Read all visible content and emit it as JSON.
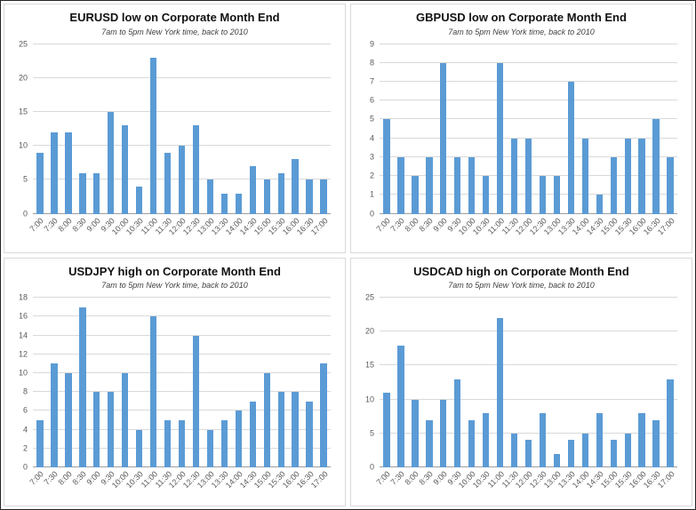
{
  "page": {
    "background": "#ffffff",
    "bar_color": "#5b9bd5",
    "gridline_color": "#d9d9d9",
    "axis_label_color": "#595959"
  },
  "chart_data": [
    {
      "type": "bar",
      "title": "EURUSD low on Corporate Month End",
      "subtitle": "7am to 5pm New York time, back to 2010",
      "categories": [
        "7:00",
        "7:30",
        "8:00",
        "8:30",
        "9:00",
        "9:30",
        "10:00",
        "10:30",
        "11:00",
        "11:30",
        "12:00",
        "12:30",
        "13:00",
        "13:30",
        "14:00",
        "14:30",
        "15:00",
        "15:30",
        "16:00",
        "16:30",
        "17:00"
      ],
      "values": [
        9,
        12,
        12,
        6,
        6,
        15,
        13,
        4,
        23,
        9,
        10,
        13,
        5,
        3,
        3,
        7,
        5,
        6,
        8,
        5,
        5
      ],
      "xlabel": "",
      "ylabel": "",
      "ylim": [
        0,
        25
      ],
      "ytick_step": 5,
      "grid": true,
      "legend": false
    },
    {
      "type": "bar",
      "title": "GBPUSD low on Corporate Month End",
      "subtitle": "7am to 5pm New York time, back to 2010",
      "categories": [
        "7:00",
        "7:30",
        "8:00",
        "8:30",
        "9:00",
        "9:30",
        "10:00",
        "10:30",
        "11:00",
        "11:30",
        "12:00",
        "12:30",
        "13:00",
        "13:30",
        "14:00",
        "14:30",
        "15:00",
        "15:30",
        "16:00",
        "16:30",
        "17:00"
      ],
      "values": [
        5,
        3,
        2,
        3,
        8,
        3,
        3,
        2,
        8,
        4,
        4,
        2,
        2,
        7,
        4,
        1,
        3,
        4,
        4,
        5,
        3
      ],
      "xlabel": "",
      "ylabel": "",
      "ylim": [
        0,
        9
      ],
      "ytick_step": 1,
      "grid": true,
      "legend": false
    },
    {
      "type": "bar",
      "title": "USDJPY high on Corporate Month End",
      "subtitle": "7am to 5pm New York time, back to 2010",
      "categories": [
        "7:00",
        "7:30",
        "8:00",
        "8:30",
        "9:00",
        "9:30",
        "10:00",
        "10:30",
        "11:00",
        "11:30",
        "12:00",
        "12:30",
        "13:00",
        "13:30",
        "14:00",
        "14:30",
        "15:00",
        "15:30",
        "16:00",
        "16:30",
        "17:00"
      ],
      "values": [
        5,
        11,
        10,
        17,
        8,
        8,
        10,
        4,
        16,
        5,
        5,
        14,
        4,
        5,
        6,
        7,
        10,
        8,
        8,
        7,
        11
      ],
      "xlabel": "",
      "ylabel": "",
      "ylim": [
        0,
        18
      ],
      "ytick_step": 2,
      "grid": true,
      "legend": false
    },
    {
      "type": "bar",
      "title": "USDCAD high on Corporate Month End",
      "subtitle": "7am to 5pm New York time, back to 2010",
      "categories": [
        "7:00",
        "7:30",
        "8:00",
        "8:30",
        "9:00",
        "9:30",
        "10:00",
        "10:30",
        "11:00",
        "11:30",
        "12:00",
        "12:30",
        "13:00",
        "13:30",
        "14:00",
        "14:30",
        "15:00",
        "15:30",
        "16:00",
        "16:30",
        "17:00"
      ],
      "values": [
        11,
        18,
        10,
        7,
        10,
        13,
        7,
        8,
        22,
        5,
        4,
        8,
        2,
        4,
        5,
        8,
        4,
        5,
        8,
        7,
        13
      ],
      "xlabel": "",
      "ylabel": "",
      "ylim": [
        0,
        25
      ],
      "ytick_step": 5,
      "grid": true,
      "legend": false
    }
  ]
}
